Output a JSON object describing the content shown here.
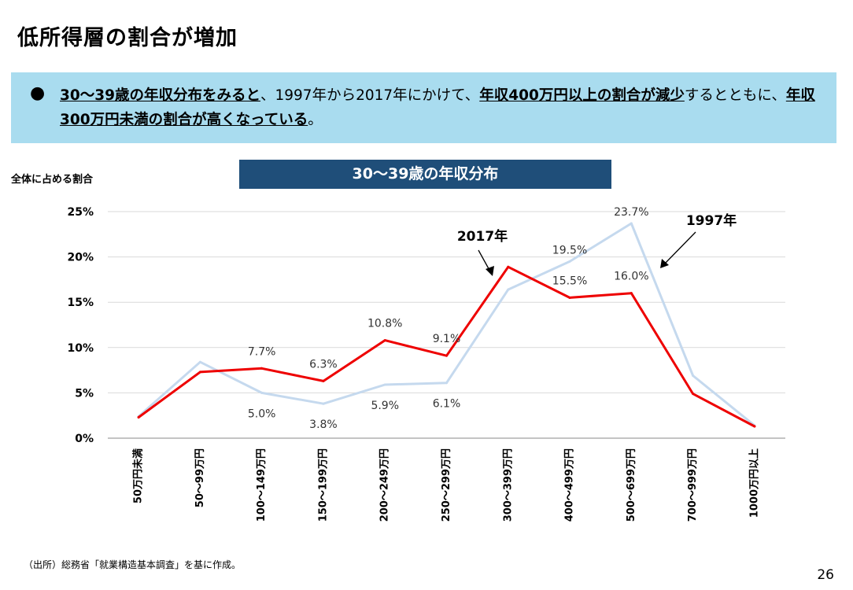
{
  "slide": {
    "title": "低所得層の割合が増加",
    "summary": {
      "s1": "30～39歳の年収分布をみると",
      "s2": "、1997年から2017年にかけて、",
      "s3": "年収400万円以上の割合が減少",
      "s4": "するとともに、",
      "s5": "年収300万円未満の割合が高くなっている",
      "s6": "。"
    },
    "source": "（出所）総務省「就業構造基本調査」を基に作成。",
    "page_number": "26"
  },
  "chart_data": {
    "type": "line",
    "title": "30～39歳の年収分布",
    "ylabel": "全体に占める割合",
    "xlabel": "",
    "ylim": [
      0,
      25
    ],
    "yticks": [
      0,
      5,
      10,
      15,
      20,
      25
    ],
    "ytick_labels": [
      "0%",
      "5%",
      "10%",
      "15%",
      "20%",
      "25%"
    ],
    "grid": true,
    "categories": [
      "50万円未満",
      "50～99万円",
      "100～149万円",
      "150～199万円",
      "200～249万円",
      "250～299万円",
      "300～399万円",
      "400～499万円",
      "500～699万円",
      "700～999万円",
      "1000万円以上"
    ],
    "series": [
      {
        "name": "1997年",
        "color": "#c5d9ee",
        "values": [
          2.4,
          8.4,
          5.0,
          3.8,
          5.9,
          6.1,
          16.4,
          19.5,
          23.7,
          6.9,
          1.4
        ],
        "data_labels": [
          "",
          "",
          "5.0%",
          "3.8%",
          "5.9%",
          "6.1%",
          "",
          "19.5%",
          "23.7%",
          "",
          ""
        ]
      },
      {
        "name": "2017年",
        "color": "#ee0000",
        "values": [
          2.3,
          7.3,
          7.7,
          6.3,
          10.8,
          9.1,
          18.9,
          15.5,
          16.0,
          4.9,
          1.3
        ],
        "data_labels": [
          "",
          "",
          "7.7%",
          "6.3%",
          "10.8%",
          "9.1%",
          "",
          "15.5%",
          "16.0%",
          "",
          ""
        ]
      }
    ]
  }
}
